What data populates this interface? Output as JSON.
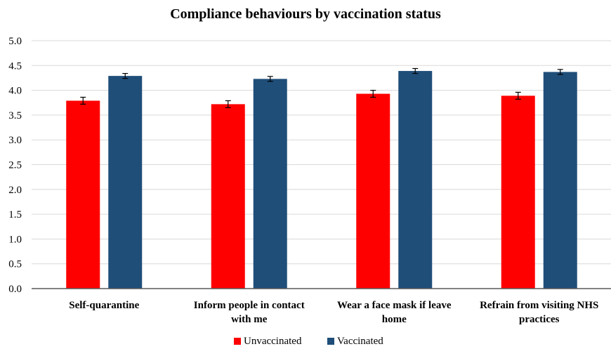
{
  "chart_data": {
    "type": "bar",
    "title": "Compliance behaviours by vaccination status",
    "categories": [
      [
        "Self-quarantine"
      ],
      [
        "Inform people in contact",
        "with me"
      ],
      [
        "Wear a face mask if leave",
        "home"
      ],
      [
        "Refrain from visiting NHS",
        "practices"
      ]
    ],
    "series": [
      {
        "name": "Unvaccinated",
        "color": "#ff0000",
        "values": [
          3.79,
          3.72,
          3.93,
          3.89
        ],
        "errors": [
          0.07,
          0.07,
          0.07,
          0.07
        ]
      },
      {
        "name": "Vaccinated",
        "color": "#1f4e79",
        "values": [
          4.29,
          4.23,
          4.39,
          4.37
        ],
        "errors": [
          0.05,
          0.05,
          0.05,
          0.05
        ]
      }
    ],
    "ylim": [
      0,
      5
    ],
    "yticks": [
      "0.0",
      "0.5",
      "1.0",
      "1.5",
      "2.0",
      "2.5",
      "3.0",
      "3.5",
      "4.0",
      "4.5",
      "5.0"
    ],
    "grid": true,
    "legend_position": "bottom-center",
    "gridline_color": "#d9d9d9",
    "axis_color": "#595959"
  }
}
